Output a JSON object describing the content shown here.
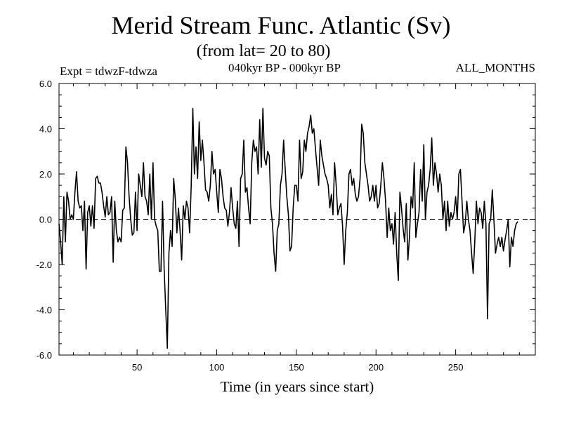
{
  "chart_data": {
    "type": "line",
    "title": "Merid Stream Func. Atlantic (Sv)",
    "subtitle": "(from lat= 20 to 80)",
    "annotations": {
      "experiment": "Expt = tdwzF-tdwza",
      "period": "040kyr BP - 000kyr BP",
      "months": "ALL_MONTHS"
    },
    "xlabel": "Time (in years since start)",
    "ylabel": "",
    "xlim": [
      1,
      300
    ],
    "ylim": [
      -6.0,
      6.0
    ],
    "x_ticks": [
      50,
      100,
      150,
      200,
      250
    ],
    "y_ticks": [
      -6.0,
      -4.0,
      -2.0,
      0.0,
      2.0,
      4.0,
      6.0
    ],
    "y_tick_labels": [
      "-6.0",
      "-4.0",
      "-2.0",
      "0.0",
      "2.0",
      "4.0",
      "6.0"
    ],
    "zero_line": "dashed",
    "grid": false,
    "series": [
      {
        "x_start": 1,
        "x_step": 1,
        "values": [
          -0.2,
          -1.0,
          -2.0,
          1.0,
          -1.0,
          1.2,
          0.8,
          0.0,
          0.2,
          0.0,
          1.2,
          2.1,
          0.8,
          0.5,
          0.6,
          -0.5,
          0.8,
          -2.2,
          0.3,
          0.6,
          -0.3,
          0.6,
          -0.4,
          1.8,
          1.9,
          1.6,
          1.6,
          1.2,
          0.6,
          0.1,
          1.0,
          0.2,
          0.3,
          1.0,
          -1.9,
          0.8,
          -0.5,
          -1.0,
          -0.8,
          -1.0,
          0.4,
          0.5,
          3.2,
          2.5,
          1.0,
          0.0,
          -0.7,
          -0.6,
          1.2,
          -0.5,
          2.0,
          1.5,
          1.0,
          2.5,
          1.0,
          0.8,
          0.2,
          2.0,
          0.0,
          2.5,
          0.0,
          -0.3,
          -0.5,
          -2.3,
          -2.3,
          0.8,
          -2.2,
          -4.0,
          -5.7,
          -1.5,
          -0.5,
          -1.2,
          1.8,
          0.9,
          -0.6,
          0.5,
          -0.5,
          -1.8,
          0.6,
          0.0,
          0.8,
          0.5,
          -0.6,
          1.5,
          4.9,
          2.0,
          3.2,
          1.8,
          4.3,
          2.6,
          3.5,
          2.5,
          1.3,
          1.2,
          0.8,
          1.5,
          3.0,
          2.0,
          2.2,
          1.2,
          0.3,
          2.2,
          1.8,
          1.0,
          0.5,
          0.4,
          -0.3,
          0.3,
          1.4,
          0.5,
          -0.2,
          -0.4,
          0.8,
          -1.2,
          1.8,
          2.0,
          3.5,
          1.2,
          1.4,
          0.5,
          -0.2,
          2.5,
          3.5,
          3.0,
          3.2,
          2.0,
          4.4,
          2.3,
          4.9,
          2.7,
          2.4,
          3.0,
          2.8,
          0.5,
          -0.2,
          -1.5,
          -2.3,
          -0.5,
          -0.2,
          1.5,
          2.0,
          3.5,
          2.2,
          1.0,
          0.2,
          -1.4,
          -1.2,
          0.5,
          1.5,
          1.5,
          0.8,
          3.5,
          1.8,
          2.1,
          3.5,
          3.0,
          3.8,
          4.1,
          4.6,
          3.8,
          4.0,
          3.1,
          2.3,
          1.5,
          3.5,
          2.8,
          2.4,
          2.0,
          1.8,
          1.5,
          0.5,
          1.1,
          0.2,
          2.5,
          1.5,
          0.2,
          0.5,
          0.7,
          -0.3,
          -2.0,
          -0.5,
          0.3,
          2.0,
          2.2,
          1.5,
          1.8,
          1.1,
          0.8,
          1.0,
          1.8,
          4.2,
          3.8,
          2.5,
          2.0,
          1.5,
          0.8,
          1.0,
          1.5,
          0.8,
          1.5,
          0.5,
          0.7,
          1.5,
          2.5,
          1.8,
          0.8,
          -0.8,
          0.5,
          -0.5,
          -0.2,
          -1.1,
          0.3,
          -1.5,
          -2.7,
          1.2,
          0.5,
          -0.4,
          -1.0,
          0.7,
          -1.8,
          -0.8,
          1.0,
          0.5,
          2.5,
          -0.8,
          -0.2,
          0.3,
          2.2,
          0.8,
          3.3,
          0.0,
          1.2,
          1.5,
          2.2,
          3.6,
          1.5,
          2.5,
          2.0,
          1.2,
          2.0,
          1.5,
          0.0,
          0.8,
          -0.5,
          0.8,
          -0.3,
          0.3,
          0.0,
          0.3,
          1.0,
          0.0,
          2.0,
          2.2,
          0.8,
          -0.6,
          -0.2,
          0.8,
          0.0,
          -0.5,
          -1.5,
          -2.4,
          -1.0,
          0.8,
          -0.2,
          0.5,
          0.3,
          -0.4,
          0.8,
          -0.2,
          -4.4,
          -0.2,
          0.0,
          1.3,
          0.0,
          -1.5,
          -1.1,
          -0.8,
          -1.2,
          -0.8,
          -1.4,
          -0.9,
          -0.5,
          0.0,
          -2.1,
          -0.8,
          -1.2,
          -0.5,
          -0.2,
          -0.1
        ]
      }
    ]
  }
}
